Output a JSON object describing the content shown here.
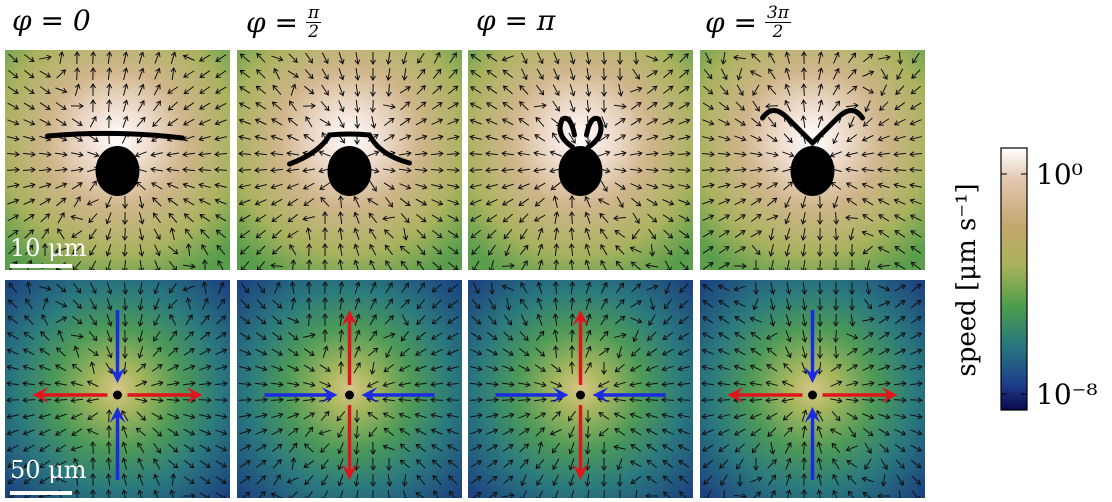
{
  "header": {
    "labels": [
      {
        "prefix": "φ = 0"
      },
      {
        "prefix": "φ =",
        "numerator": "π",
        "denominator": "2"
      },
      {
        "prefix": "φ = π"
      },
      {
        "prefix": "φ =",
        "numerator": "3π",
        "denominator": "2"
      }
    ]
  },
  "scale_bars": {
    "top": "10 μm",
    "bottom": "50 μm"
  },
  "colorbar": {
    "label": "speed [μm s⁻¹]",
    "top_label": "10⁰",
    "bottom_label": "10⁻⁸"
  }
}
